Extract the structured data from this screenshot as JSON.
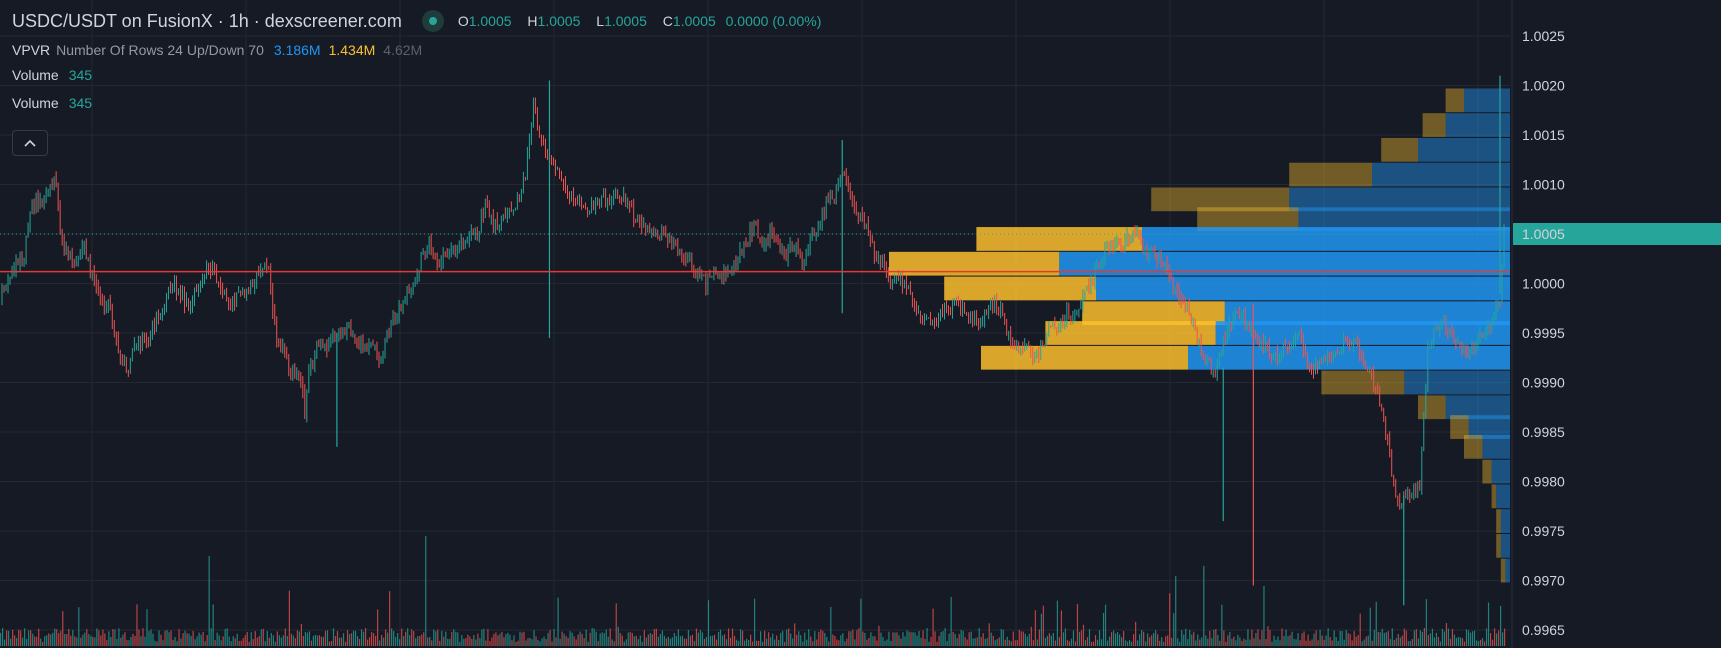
{
  "header": {
    "title": "USDC/USDT on FusionX · 1h · dexscreener.com",
    "ohlc": {
      "o_label": "O",
      "o_value": "1.0005",
      "h_label": "H",
      "h_value": "1.0005",
      "l_label": "L",
      "l_value": "1.0005",
      "c_label": "C",
      "c_value": "1.0005",
      "change": "0.0000 (0.00%)"
    }
  },
  "indicator": {
    "name": "VPVR",
    "params": "Number Of Rows 24 Up/Down 70",
    "up": "3.186M",
    "down": "1.434M",
    "total": "4.62M"
  },
  "volume_legends": [
    {
      "name": "Volume",
      "value": "345"
    },
    {
      "name": "Volume",
      "value": "345"
    }
  ],
  "price_axis": {
    "ticks": [
      "1.0025",
      "1.0020",
      "1.0015",
      "1.0010",
      "1.0005",
      "1.0000",
      "0.9995",
      "0.9990",
      "0.9985",
      "0.9980",
      "0.9975",
      "0.9970",
      "0.9965"
    ],
    "current_price_label": "1.0005"
  },
  "colors": {
    "background": "#161a25",
    "grid": "#242833",
    "up": "#26a69a",
    "down": "#ef5350",
    "vp_up": "#2196f3",
    "vp_down": "#fbc02d",
    "hline": "#e53935",
    "price_tag": "#26a69a"
  },
  "chart_data": {
    "type": "candlestick",
    "pair": "USDC/USDT",
    "timeframe": "1h",
    "ylim": [
      0.99653,
      1.00255
    ],
    "current_price": 1.0005,
    "horizontal_line": 1.00012,
    "candles_close_path": [
      [
        0,
        0.99985
      ],
      [
        4,
        1.0
      ],
      [
        8,
        1.00025
      ],
      [
        12,
        1.0003
      ],
      [
        16,
        1.0008
      ],
      [
        20,
        1.00085
      ],
      [
        24,
        1.0009
      ],
      [
        28,
        1.00105
      ],
      [
        30,
        1.0005
      ],
      [
        34,
        1.00025
      ],
      [
        38,
        1.0002
      ],
      [
        42,
        1.00035
      ],
      [
        46,
        1.00005
      ],
      [
        50,
        0.99985
      ],
      [
        55,
        0.99975
      ],
      [
        60,
        0.99925
      ],
      [
        64,
        0.99915
      ],
      [
        66,
        0.99935
      ],
      [
        70,
        0.9994
      ],
      [
        74,
        0.99945
      ],
      [
        78,
        0.99965
      ],
      [
        82,
        0.9998
      ],
      [
        86,
        1.0
      ],
      [
        90,
        0.9999
      ],
      [
        94,
        0.99975
      ],
      [
        98,
        0.99995
      ],
      [
        102,
        1.0001
      ],
      [
        106,
        1.0002
      ],
      [
        110,
        0.9999
      ],
      [
        114,
        0.9998
      ],
      [
        118,
        0.99985
      ],
      [
        122,
        0.9999
      ],
      [
        126,
        1.0
      ],
      [
        130,
        1.0002
      ],
      [
        134,
        1.0001
      ],
      [
        138,
        0.99945
      ],
      [
        142,
        0.9993
      ],
      [
        146,
        0.9991
      ],
      [
        150,
        0.99905
      ],
      [
        152,
        0.9987
      ],
      [
        154,
        0.9991
      ],
      [
        158,
        0.99935
      ],
      [
        162,
        0.99935
      ],
      [
        166,
        0.99945
      ],
      [
        170,
        0.9995
      ],
      [
        174,
        0.99955
      ],
      [
        178,
        0.99945
      ],
      [
        182,
        0.99935
      ],
      [
        186,
        0.9994
      ],
      [
        190,
        0.9992
      ],
      [
        194,
        0.99955
      ],
      [
        198,
        0.9997
      ],
      [
        202,
        0.99985
      ],
      [
        206,
        0.99995
      ],
      [
        210,
        1.00025
      ],
      [
        214,
        1.0004
      ],
      [
        218,
        1.0002
      ],
      [
        222,
        1.0003
      ],
      [
        226,
        1.0003
      ],
      [
        230,
        1.0004
      ],
      [
        234,
        1.0005
      ],
      [
        238,
        1.0005
      ],
      [
        242,
        1.0008
      ],
      [
        246,
        1.0006
      ],
      [
        250,
        1.0006
      ],
      [
        254,
        1.0008
      ],
      [
        258,
        1.0008
      ],
      [
        262,
        1.0011
      ],
      [
        266,
        1.0018
      ],
      [
        268,
        1.0016
      ],
      [
        272,
        1.0013
      ],
      [
        276,
        1.0012
      ],
      [
        280,
        1.001
      ],
      [
        284,
        1.0009
      ],
      [
        288,
        1.00085
      ],
      [
        292,
        1.0007
      ],
      [
        296,
        1.0008
      ],
      [
        300,
        1.0009
      ],
      [
        304,
        1.0008
      ],
      [
        308,
        1.0009
      ],
      [
        312,
        1.00085
      ],
      [
        316,
        1.0007
      ],
      [
        320,
        1.0006
      ],
      [
        324,
        1.0005
      ],
      [
        328,
        1.0005
      ],
      [
        332,
        1.00045
      ],
      [
        336,
        1.0004
      ],
      [
        340,
        1.0003
      ],
      [
        344,
        1.0002
      ],
      [
        348,
        1.0001
      ],
      [
        352,
        1.0
      ],
      [
        356,
        1.0001
      ],
      [
        360,
        1.00005
      ],
      [
        364,
        1.0001
      ],
      [
        368,
        1.00025
      ],
      [
        372,
        1.0004
      ],
      [
        376,
        1.0006
      ],
      [
        380,
        1.0004
      ],
      [
        384,
        1.0005
      ],
      [
        388,
        1.0004
      ],
      [
        392,
        1.0003
      ],
      [
        396,
        1.0004
      ],
      [
        400,
        1.0002
      ],
      [
        404,
        1.0004
      ],
      [
        408,
        1.0006
      ],
      [
        412,
        1.0008
      ],
      [
        416,
        1.0009
      ],
      [
        420,
        1.0011
      ],
      [
        424,
        1.0009
      ],
      [
        428,
        1.0007
      ],
      [
        432,
        1.0006
      ],
      [
        436,
        1.0003
      ],
      [
        440,
        1.0002
      ],
      [
        444,
        1.0
      ],
      [
        448,
        1.0001
      ],
      [
        452,
        0.99995
      ],
      [
        456,
        0.99975
      ],
      [
        460,
        0.9996
      ],
      [
        464,
        0.9996
      ],
      [
        468,
        0.99965
      ],
      [
        472,
        0.99975
      ],
      [
        476,
        0.9998
      ],
      [
        480,
        0.9997
      ],
      [
        484,
        0.99965
      ],
      [
        488,
        0.9996
      ],
      [
        492,
        0.99975
      ],
      [
        496,
        0.9998
      ],
      [
        500,
        0.9997
      ],
      [
        504,
        0.9994
      ],
      [
        508,
        0.99935
      ],
      [
        512,
        0.9994
      ],
      [
        516,
        0.99925
      ],
      [
        520,
        0.99935
      ],
      [
        524,
        0.9996
      ],
      [
        528,
        0.99955
      ],
      [
        532,
        0.9997
      ],
      [
        536,
        0.99965
      ],
      [
        540,
        0.99985
      ],
      [
        544,
        1.0
      ],
      [
        548,
        1.0002
      ],
      [
        552,
        1.00035
      ],
      [
        556,
        1.0004
      ],
      [
        560,
        1.0004
      ],
      [
        564,
        1.0005
      ],
      [
        568,
        1.00045
      ],
      [
        572,
        1.0003
      ],
      [
        576,
        1.0003
      ],
      [
        580,
        1.0002
      ],
      [
        584,
        1.0
      ],
      [
        588,
        0.9999
      ],
      [
        592,
        0.99975
      ],
      [
        596,
        0.9995
      ],
      [
        600,
        0.99925
      ],
      [
        604,
        0.99915
      ],
      [
        606,
        0.99905
      ],
      [
        608,
        0.9993
      ],
      [
        612,
        0.9995
      ],
      [
        616,
        0.9997
      ],
      [
        620,
        0.99965
      ],
      [
        624,
        0.9995
      ],
      [
        628,
        0.9994
      ],
      [
        632,
        0.99935
      ],
      [
        636,
        0.99925
      ],
      [
        640,
        0.99935
      ],
      [
        644,
        0.9994
      ],
      [
        648,
        0.9995
      ],
      [
        652,
        0.9992
      ],
      [
        656,
        0.99915
      ],
      [
        660,
        0.99925
      ],
      [
        664,
        0.9993
      ],
      [
        668,
        0.99935
      ],
      [
        672,
        0.99945
      ],
      [
        676,
        0.9994
      ],
      [
        680,
        0.9992
      ],
      [
        684,
        0.99905
      ],
      [
        688,
        0.9988
      ],
      [
        690,
        0.9986
      ],
      [
        692,
        0.99845
      ],
      [
        694,
        0.9981
      ],
      [
        696,
        0.99785
      ],
      [
        698,
        0.99775
      ],
      [
        700,
        0.99785
      ],
      [
        704,
        0.9979
      ],
      [
        708,
        0.998
      ],
      [
        712,
        0.9993
      ],
      [
        716,
        0.99955
      ],
      [
        720,
        0.9996
      ],
      [
        724,
        0.9995
      ],
      [
        728,
        0.99935
      ],
      [
        732,
        0.99925
      ],
      [
        736,
        0.9994
      ],
      [
        740,
        0.9995
      ],
      [
        744,
        0.9996
      ],
      [
        748,
        0.99985
      ],
      [
        750,
        1.0005
      ]
    ],
    "wick_spikes": [
      [
        274,
        1.00205,
        0.99945
      ],
      [
        420,
        1.00145,
        0.9997
      ],
      [
        168,
        0.9995,
        0.99835
      ],
      [
        610,
        0.99915,
        0.9976
      ],
      [
        625,
        0.9998,
        0.99695
      ],
      [
        700,
        0.99785,
        0.99675
      ],
      [
        748,
        1.0021,
        0.9999
      ]
    ],
    "volume_profile": {
      "row_height": 0.00025,
      "rows": [
        {
          "price": 1.00185,
          "up": 0.1,
          "down": 0.04
        },
        {
          "price": 1.0016,
          "up": 0.14,
          "down": 0.05
        },
        {
          "price": 1.00135,
          "up": 0.2,
          "down": 0.08
        },
        {
          "price": 1.0011,
          "up": 0.3,
          "down": 0.18
        },
        {
          "price": 1.00085,
          "up": 0.48,
          "down": 0.3
        },
        {
          "price": 1.00065,
          "up": 0.46,
          "down": 0.22
        },
        {
          "price": 1.00045,
          "up": 0.8,
          "down": 0.36
        },
        {
          "price": 1.0002,
          "up": 0.98,
          "down": 0.37
        },
        {
          "price": 0.99995,
          "up": 0.9,
          "down": 0.33
        },
        {
          "price": 0.9997,
          "up": 0.62,
          "down": 0.31
        },
        {
          "price": 0.9995,
          "up": 0.64,
          "down": 0.37
        },
        {
          "price": 0.99925,
          "up": 0.7,
          "down": 0.45
        },
        {
          "price": 0.999,
          "up": 0.23,
          "down": 0.18
        },
        {
          "price": 0.99875,
          "up": 0.14,
          "down": 0.06
        },
        {
          "price": 0.99855,
          "up": 0.09,
          "down": 0.04
        },
        {
          "price": 0.99835,
          "up": 0.06,
          "down": 0.04
        },
        {
          "price": 0.9981,
          "up": 0.04,
          "down": 0.02
        },
        {
          "price": 0.99785,
          "up": 0.03,
          "down": 0.01
        },
        {
          "price": 0.9976,
          "up": 0.02,
          "down": 0.01
        },
        {
          "price": 0.99735,
          "up": 0.02,
          "down": 0.01
        },
        {
          "price": 0.9971,
          "up": 0.01,
          "down": 0.01
        }
      ]
    }
  }
}
